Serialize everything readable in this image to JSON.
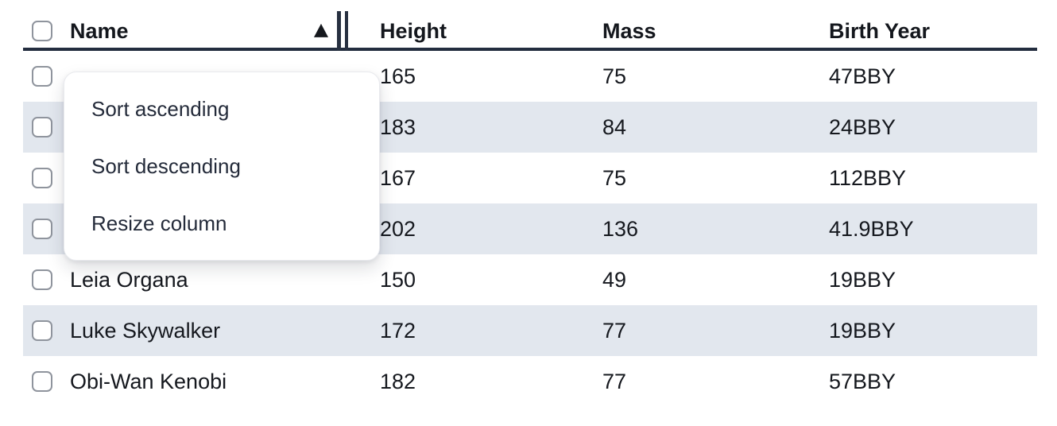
{
  "colors": {
    "header_border": "#232d3f",
    "row_stripe": "#e2e7ee",
    "text": "#15181e",
    "checkbox_border": "#8f949d",
    "menu_background": "#ffffff"
  },
  "icons": {
    "sort_indicator": "sort-ascending-triangle-icon",
    "resize_handle": "column-resize-bars-icon",
    "checkbox": "checkbox-unchecked"
  },
  "table": {
    "columns": [
      {
        "key": "name",
        "label": "Name",
        "sorted": "ascending"
      },
      {
        "key": "height",
        "label": "Height"
      },
      {
        "key": "mass",
        "label": "Mass"
      },
      {
        "key": "birth_year",
        "label": "Birth Year"
      }
    ],
    "rows": [
      {
        "name": "",
        "height": "165",
        "mass": "75",
        "birth_year": "47BBY",
        "checked": false
      },
      {
        "name": "",
        "height": "183",
        "mass": "84",
        "birth_year": "24BBY",
        "checked": false
      },
      {
        "name": "",
        "height": "167",
        "mass": "75",
        "birth_year": "112BBY",
        "checked": false
      },
      {
        "name": "",
        "height": "202",
        "mass": "136",
        "birth_year": "41.9BBY",
        "checked": false
      },
      {
        "name": "Leia Organa",
        "height": "150",
        "mass": "49",
        "birth_year": "19BBY",
        "checked": false
      },
      {
        "name": "Luke Skywalker",
        "height": "172",
        "mass": "77",
        "birth_year": "19BBY",
        "checked": false
      },
      {
        "name": "Obi-Wan Kenobi",
        "height": "182",
        "mass": "77",
        "birth_year": "57BBY",
        "checked": false
      }
    ]
  },
  "context_menu": {
    "items": [
      {
        "label": "Sort ascending"
      },
      {
        "label": "Sort descending"
      },
      {
        "label": "Resize column"
      }
    ]
  }
}
